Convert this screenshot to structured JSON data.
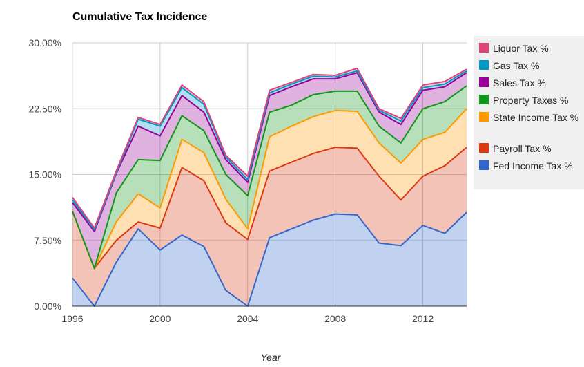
{
  "chart_data": {
    "type": "area",
    "stacked": true,
    "title": "Cumulative Tax Incidence",
    "xlabel": "Year",
    "ylabel": "",
    "x": [
      1996,
      1997,
      1998,
      1999,
      2000,
      2001,
      2002,
      2003,
      2004,
      2005,
      2006,
      2007,
      2008,
      2009,
      2010,
      2011,
      2012,
      2013,
      2014
    ],
    "xlim": [
      1996,
      2014
    ],
    "ylim": [
      0,
      30
    ],
    "xticks": [
      "1996",
      "2000",
      "2004",
      "2008",
      "2012"
    ],
    "yticks": [
      "0.00%",
      "7.50%",
      "15.00%",
      "22.50%",
      "30.00%"
    ],
    "grid": true,
    "legend_position": "right",
    "series": [
      {
        "name": "Fed Income Tax %",
        "color": "#3366cc",
        "values": [
          3.2,
          0.0,
          5.0,
          8.8,
          6.4,
          8.1,
          6.8,
          1.8,
          0.0,
          7.8,
          8.8,
          9.8,
          10.5,
          10.4,
          7.2,
          6.9,
          9.2,
          8.3,
          10.7
        ]
      },
      {
        "name": "Payroll Tax %",
        "color": "#dc3912",
        "values": [
          7.6,
          4.3,
          2.5,
          0.8,
          2.5,
          7.7,
          7.5,
          7.7,
          7.6,
          7.6,
          7.6,
          7.6,
          7.6,
          7.6,
          7.6,
          5.2,
          5.6,
          7.7,
          7.4
        ]
      },
      {
        "name": "State Income Tax %",
        "color": "#ff9900",
        "values": [
          0.0,
          0.0,
          2.1,
          3.2,
          2.3,
          3.2,
          3.2,
          2.7,
          1.2,
          3.9,
          4.1,
          4.2,
          4.2,
          4.2,
          3.8,
          4.2,
          4.2,
          3.8,
          4.4
        ]
      },
      {
        "name": "Property Taxes %",
        "color": "#109618",
        "values": [
          0.0,
          0.0,
          3.3,
          3.9,
          5.4,
          2.7,
          2.5,
          2.8,
          3.8,
          2.8,
          2.4,
          2.5,
          2.2,
          2.3,
          1.9,
          2.3,
          3.5,
          3.5,
          2.6
        ]
      },
      {
        "name": "Sales Tax %",
        "color": "#990099",
        "values": [
          1.0,
          4.2,
          2.2,
          3.8,
          2.8,
          2.3,
          2.1,
          1.7,
          1.5,
          1.9,
          2.1,
          1.8,
          1.4,
          2.1,
          1.6,
          2.1,
          2.1,
          1.7,
          1.5
        ]
      },
      {
        "name": "Gas Tax %",
        "color": "#0099c6",
        "values": [
          0.3,
          0.2,
          0.1,
          0.8,
          1.1,
          0.9,
          0.9,
          0.3,
          0.3,
          0.3,
          0.3,
          0.3,
          0.2,
          0.2,
          0.2,
          0.4,
          0.3,
          0.3,
          0.2
        ]
      },
      {
        "name": "Liquor Tax %",
        "color": "#dd4477",
        "values": [
          0.3,
          0.2,
          0.2,
          0.2,
          0.2,
          0.3,
          0.3,
          0.2,
          0.4,
          0.3,
          0.2,
          0.2,
          0.2,
          0.3,
          0.2,
          0.3,
          0.3,
          0.3,
          0.2
        ]
      }
    ]
  }
}
